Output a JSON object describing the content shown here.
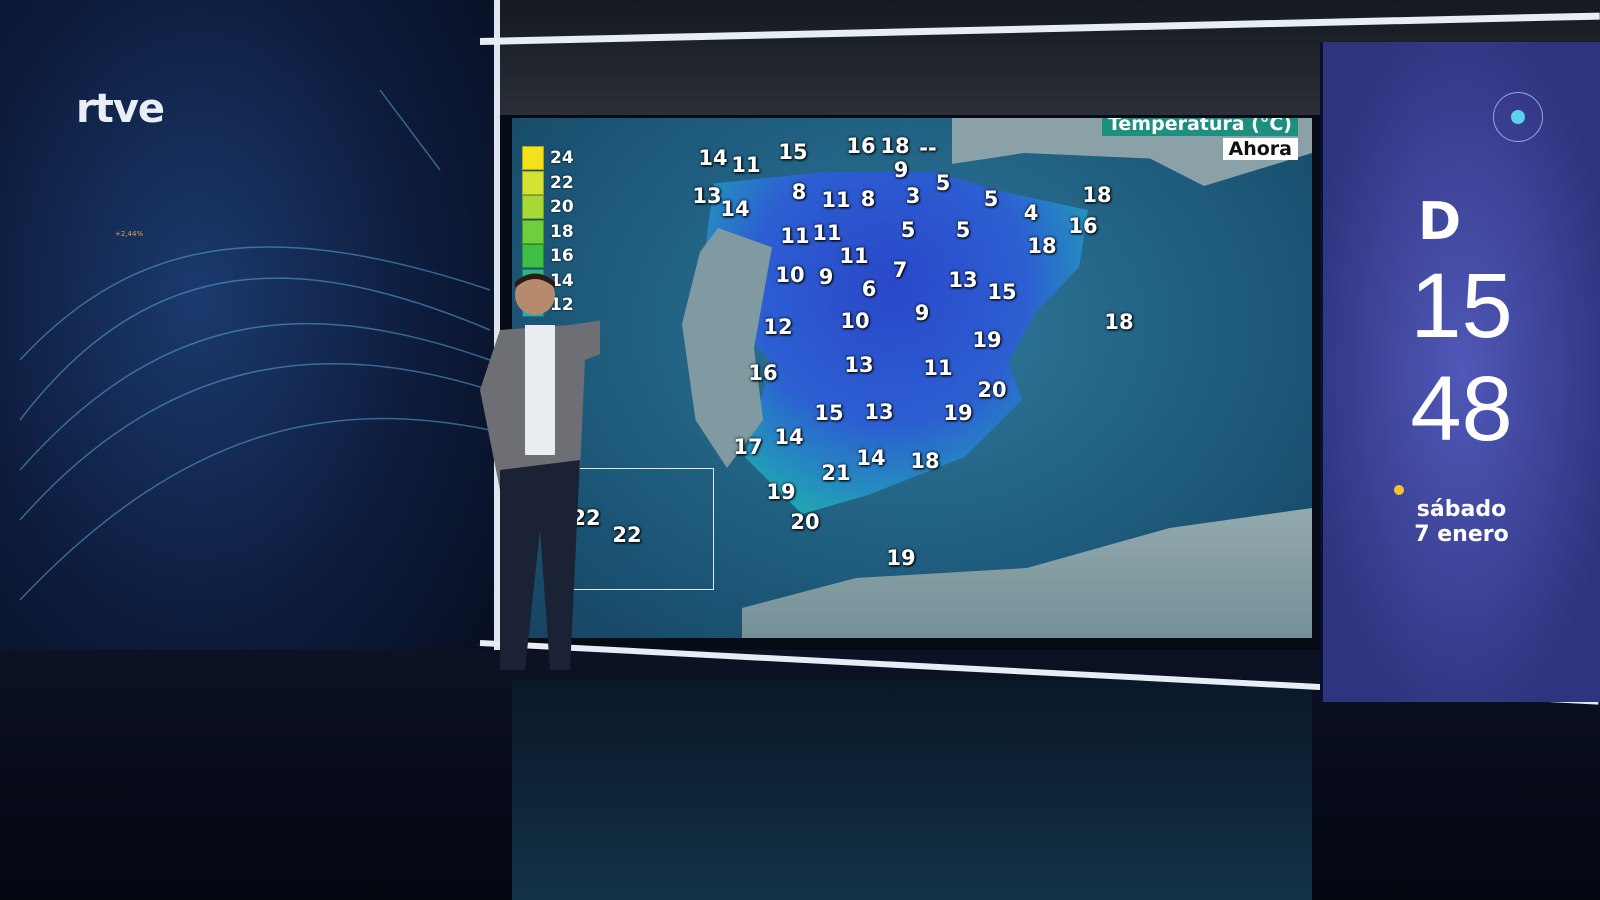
{
  "broadcaster_logo": "rtve",
  "map": {
    "title": "Temperatura (°C)",
    "subtitle": "Ahora",
    "legend": [
      {
        "label": "24",
        "color": "#f2e21c"
      },
      {
        "label": "22",
        "color": "#d4e234"
      },
      {
        "label": "20",
        "color": "#a6d938"
      },
      {
        "label": "18",
        "color": "#6fcf3a"
      },
      {
        "label": "16",
        "color": "#3dbf45"
      },
      {
        "label": "14",
        "color": "#2fb48a"
      },
      {
        "label": "12",
        "color": "#28a7b5"
      }
    ],
    "temperatures": [
      "14",
      "11",
      "15",
      "16",
      "18",
      "--",
      "9",
      "13",
      "14",
      "8",
      "11",
      "8",
      "3",
      "5",
      "5",
      "4",
      "18",
      "16",
      "11",
      "11",
      "5",
      "5",
      "18",
      "11",
      "7",
      "10",
      "9",
      "6",
      "13",
      "15",
      "9",
      "12",
      "10",
      "18",
      "19",
      "16",
      "13",
      "11",
      "20",
      "15",
      "13",
      "19",
      "17",
      "14",
      "14",
      "18",
      "21",
      "19",
      "20",
      "19",
      "22",
      "22"
    ]
  },
  "clock": {
    "hours": "15",
    "minutes": "48",
    "day": "sábado",
    "date": "7 enero",
    "logo": "D"
  },
  "ticker": "+2,44%"
}
